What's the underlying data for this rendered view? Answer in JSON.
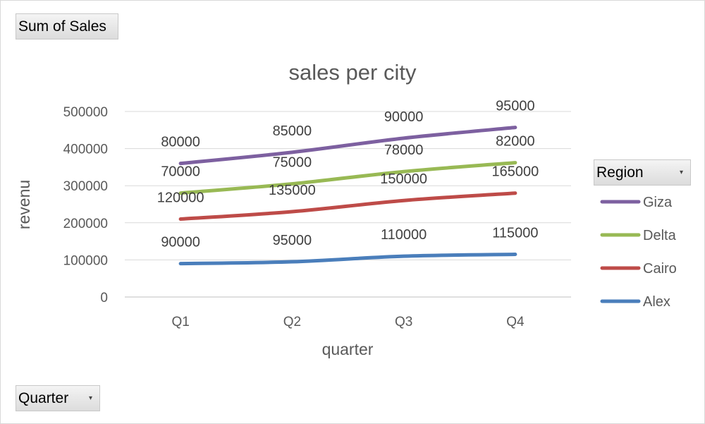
{
  "pivot_buttons": {
    "values_field": "Sum of Sales",
    "axis_field": "Quarter",
    "legend_field": "Region"
  },
  "chart_data": {
    "type": "line",
    "title": "sales per city",
    "xlabel": "quarter",
    "ylabel": "revenu",
    "categories": [
      "Q1",
      "Q2",
      "Q3",
      "Q4"
    ],
    "stacked": true,
    "ylim": [
      0,
      500000
    ],
    "yticks": [
      0,
      100000,
      200000,
      300000,
      400000,
      500000
    ],
    "grid": true,
    "legend_position": "right",
    "series": [
      {
        "name": "Alex",
        "color": "#4a7ebb",
        "values": [
          90000,
          95000,
          110000,
          115000
        ]
      },
      {
        "name": "Cairo",
        "color": "#be4b48",
        "values": [
          120000,
          135000,
          150000,
          165000
        ]
      },
      {
        "name": "Delta",
        "color": "#98b954",
        "values": [
          70000,
          75000,
          78000,
          82000
        ]
      },
      {
        "name": "Giza",
        "color": "#7d60a0",
        "values": [
          80000,
          85000,
          90000,
          95000
        ]
      }
    ]
  }
}
